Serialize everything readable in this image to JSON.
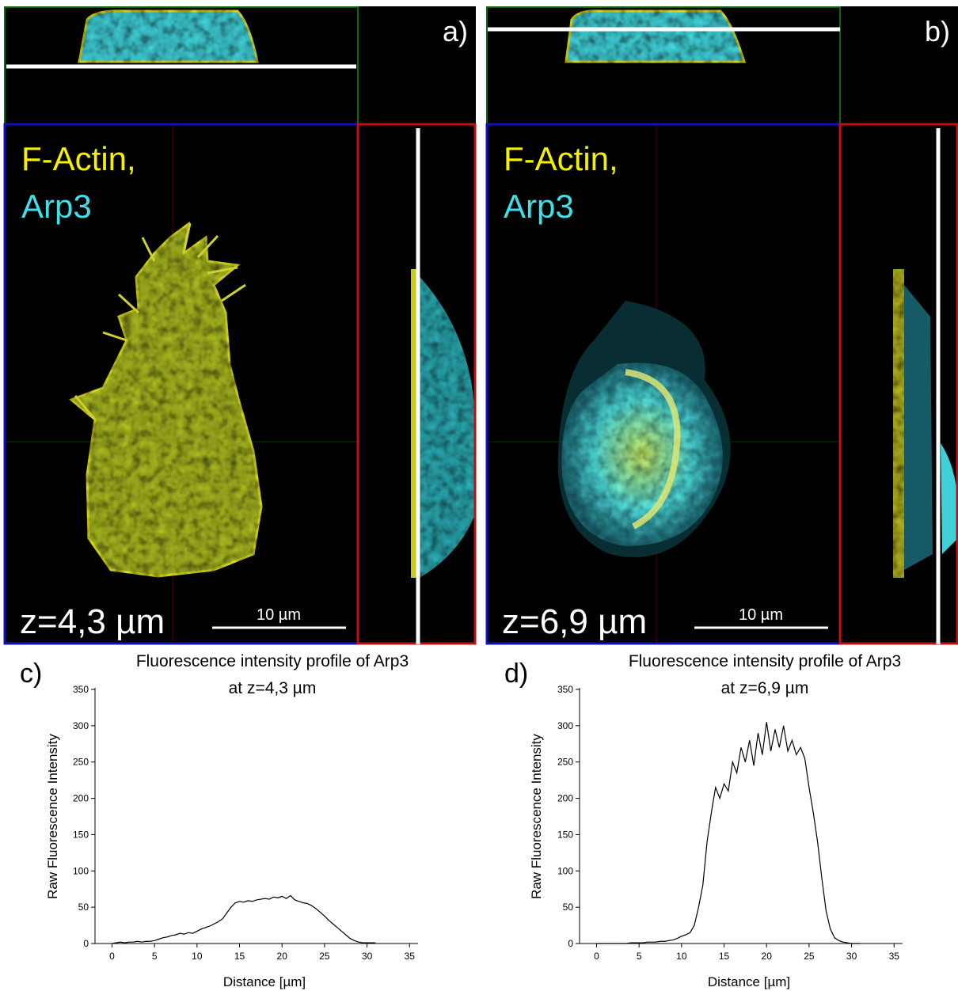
{
  "panels": [
    {
      "letter": "a)",
      "stain_1": "F-Actin,",
      "stain_2": "Arp3",
      "z_label": "z=4,3 µm",
      "scale_bar": "10 µm"
    },
    {
      "letter": "b)",
      "stain_1": "F-Actin,",
      "stain_2": "Arp3",
      "z_label": "z=6,9 µm",
      "scale_bar": "10 µm"
    }
  ],
  "chart_data": [
    {
      "type": "line",
      "panel_label": "c)",
      "title": "Fluorescence intensity profile of Arp3",
      "subtitle": "at z=4,3 µm",
      "x_label": "Distance [µm]",
      "y_label": "Raw Fluorescence Intensity",
      "color": "#000000",
      "x": [
        0,
        0.5,
        1,
        1.5,
        2,
        2.5,
        3,
        3.5,
        4,
        4.5,
        5,
        5.5,
        6,
        6.5,
        7,
        7.5,
        8,
        8.5,
        9,
        9.5,
        10,
        10.5,
        11,
        11.5,
        12,
        12.5,
        13,
        13.5,
        14,
        14.5,
        15,
        15.5,
        16,
        16.5,
        17,
        17.5,
        18,
        18.5,
        19,
        19.5,
        20,
        20.5,
        21,
        21.5,
        22,
        22.5,
        23,
        23.5,
        24,
        24.5,
        25,
        25.5,
        26,
        26.5,
        27,
        27.5,
        28,
        28.5,
        29,
        29.5,
        30,
        30.5,
        31
      ],
      "values": [
        0,
        1,
        2,
        1,
        2,
        2,
        3,
        2,
        3,
        3,
        4,
        6,
        8,
        9,
        11,
        12,
        14,
        13,
        15,
        14,
        17,
        20,
        22,
        24,
        27,
        30,
        34,
        42,
        50,
        56,
        58,
        57,
        59,
        58,
        60,
        61,
        62,
        61,
        64,
        63,
        65,
        62,
        66,
        60,
        58,
        56,
        55,
        52,
        48,
        43,
        38,
        32,
        27,
        22,
        17,
        12,
        7,
        4,
        2,
        1,
        1,
        1,
        1
      ],
      "xlim": [
        -2,
        36
      ],
      "ylim": [
        0,
        350
      ],
      "xticks": [
        0,
        5,
        10,
        15,
        20,
        25,
        30,
        35
      ],
      "yticks": [
        0,
        50,
        100,
        150,
        200,
        250,
        300,
        350
      ]
    },
    {
      "type": "line",
      "panel_label": "d)",
      "title": "Fluorescence intensity profile of Arp3",
      "subtitle": "at z=6,9 µm",
      "x_label": "Distance [µm]",
      "y_label": "Raw Fluorescence Intensity",
      "color": "#000000",
      "x": [
        0,
        0.5,
        1,
        1.5,
        2,
        2.5,
        3,
        3.5,
        4,
        4.5,
        5,
        5.5,
        6,
        6.5,
        7,
        7.5,
        8,
        8.5,
        9,
        9.5,
        10,
        10.5,
        11,
        11.5,
        12,
        12.5,
        13,
        13.5,
        14,
        14.5,
        15,
        15.5,
        16,
        16.5,
        17,
        17.5,
        18,
        18.5,
        19,
        19.5,
        20,
        20.5,
        21,
        21.5,
        22,
        22.5,
        23,
        23.5,
        24,
        24.5,
        25,
        25.5,
        26,
        26.5,
        27,
        27.5,
        28,
        28.5,
        29,
        29.5,
        30,
        30.5,
        31
      ],
      "values": [
        0,
        0,
        0,
        0,
        0,
        0,
        0,
        0,
        1,
        1,
        1,
        1,
        2,
        2,
        2,
        3,
        3,
        4,
        5,
        7,
        10,
        12,
        15,
        25,
        50,
        80,
        140,
        180,
        215,
        200,
        220,
        210,
        250,
        235,
        270,
        250,
        280,
        245,
        290,
        260,
        305,
        265,
        295,
        270,
        300,
        265,
        280,
        260,
        270,
        255,
        215,
        180,
        140,
        90,
        45,
        20,
        8,
        4,
        2,
        1,
        0,
        0,
        0
      ],
      "xlim": [
        -2,
        36
      ],
      "ylim": [
        0,
        350
      ],
      "xticks": [
        0,
        5,
        10,
        15,
        20,
        25,
        30,
        35
      ],
      "yticks": [
        0,
        50,
        100,
        150,
        200,
        250,
        300,
        350
      ]
    }
  ]
}
